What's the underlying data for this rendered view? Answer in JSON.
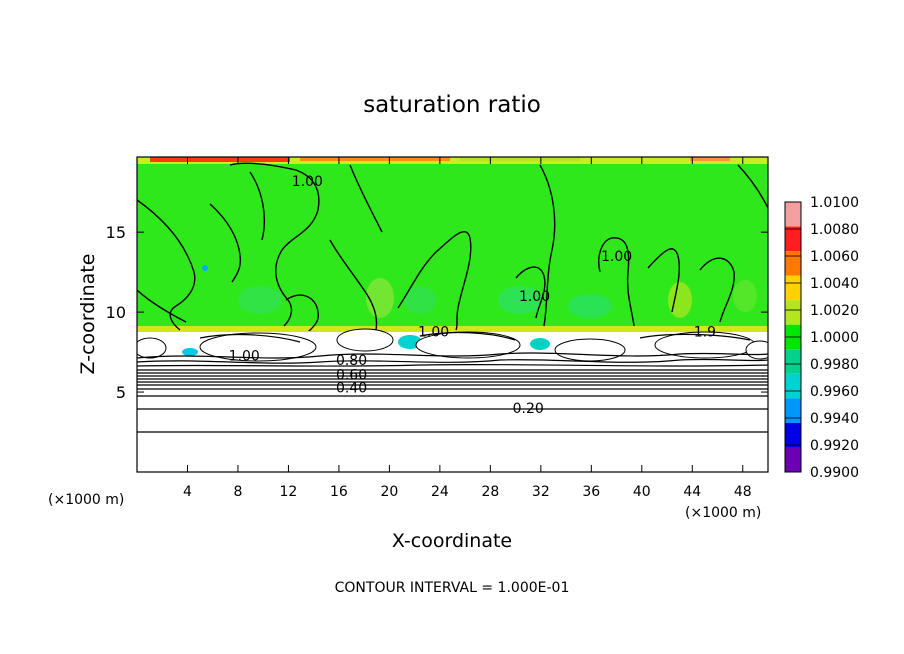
{
  "chart_data": {
    "type": "heatmap",
    "title": "saturation ratio",
    "xlabel": "X-coordinate",
    "ylabel": "Z-coordinate",
    "x_unit": "(×1000 m)",
    "xlim": [
      0,
      50
    ],
    "ylim": [
      0,
      19.7
    ],
    "x_ticks": [
      4,
      8,
      12,
      16,
      20,
      24,
      28,
      32,
      36,
      40,
      44,
      48
    ],
    "y_ticks": [
      5,
      10,
      15
    ],
    "grid": false,
    "footer": "CONTOUR INTERVAL = 1.000E-01",
    "colorbar": {
      "labels": [
        "1.0100",
        "1.0080",
        "1.0060",
        "1.0040",
        "1.0020",
        "1.0000",
        "0.9980",
        "0.9960",
        "0.9940",
        "0.9920",
        "0.9900"
      ],
      "colors": [
        "#f4a0a0",
        "#ff1e1e",
        "#ff7800",
        "#ffd200",
        "#b4e61e",
        "#00e600",
        "#00d28c",
        "#00d2d2",
        "#0096ff",
        "#0000e6",
        "#6e00b4"
      ]
    },
    "contour_labels": [
      {
        "text": "1.00",
        "x": 13.5,
        "z": 18.2
      },
      {
        "text": "1.00",
        "x": 38.0,
        "z": 13.5
      },
      {
        "text": "1.00",
        "x": 31.5,
        "z": 11.0
      },
      {
        "text": "1.00",
        "x": 23.5,
        "z": 8.8
      },
      {
        "text": "1.00",
        "x": 8.5,
        "z": 7.3
      },
      {
        "text": "1.9",
        "x": 45.0,
        "z": 8.8
      },
      {
        "text": "0.80",
        "x": 17.0,
        "z": 7.0
      },
      {
        "text": "0.60",
        "x": 17.0,
        "z": 6.1
      },
      {
        "text": "0.40",
        "x": 17.0,
        "z": 5.3
      },
      {
        "text": "0.20",
        "x": 31.0,
        "z": 4.0
      }
    ]
  }
}
